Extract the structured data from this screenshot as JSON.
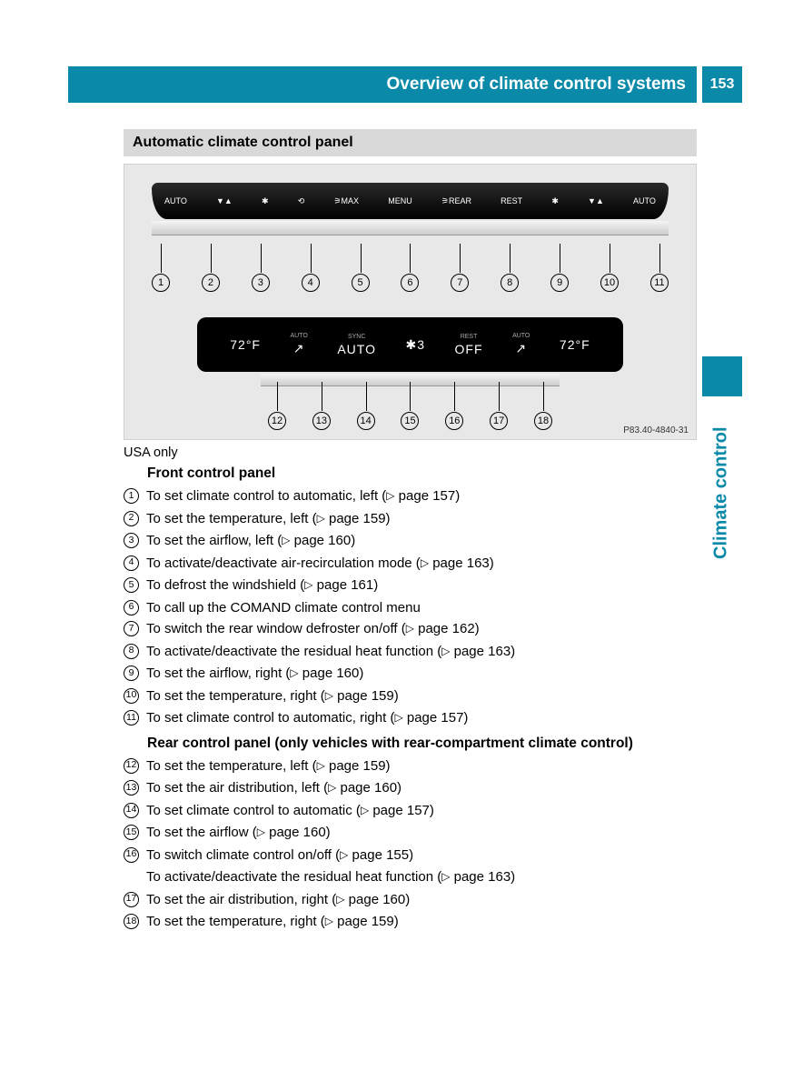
{
  "header": {
    "title": "Overview of climate control systems",
    "page": "153"
  },
  "side_tab": "Climate control",
  "section_title": "Automatic climate control panel",
  "figure": {
    "top_buttons": [
      "AUTO",
      "▼▲",
      "✱",
      "⟲",
      "⚞MAX",
      "MENU",
      "⚞REAR",
      "REST",
      "✱",
      "▼▲",
      "AUTO"
    ],
    "top_callouts": [
      "1",
      "2",
      "3",
      "4",
      "5",
      "6",
      "7",
      "8",
      "9",
      "10",
      "11"
    ],
    "rear_display": [
      {
        "small": "",
        "val": "72°F"
      },
      {
        "small": "AUTO",
        "val": "↗"
      },
      {
        "small": "SYNC",
        "val": "AUTO"
      },
      {
        "small": "",
        "val": "✱3"
      },
      {
        "small": "REST",
        "val": "OFF"
      },
      {
        "small": "AUTO",
        "val": "↗"
      },
      {
        "small": "",
        "val": "72°F"
      }
    ],
    "bottom_callouts": [
      "12",
      "13",
      "14",
      "15",
      "16",
      "17",
      "18"
    ],
    "code": "P83.40-4840-31"
  },
  "note": "USA only",
  "front_heading": "Front control panel",
  "rear_heading": "Rear control panel (only vehicles with rear-compartment climate control)",
  "items_front": [
    {
      "n": "1",
      "text": "To set climate control to automatic, left (▷ page 157)"
    },
    {
      "n": "2",
      "text": "To set the temperature, left (▷ page 159)"
    },
    {
      "n": "3",
      "text": "To set the airflow, left (▷ page 160)"
    },
    {
      "n": "4",
      "text": "To activate/deactivate air-recirculation mode (▷ page 163)"
    },
    {
      "n": "5",
      "text": "To defrost the windshield (▷ page 161)"
    },
    {
      "n": "6",
      "text": "To call up the COMAND climate control menu"
    },
    {
      "n": "7",
      "text": "To switch the rear window defroster on/off (▷ page 162)"
    },
    {
      "n": "8",
      "text": "To activate/deactivate the residual heat function (▷ page 163)"
    },
    {
      "n": "9",
      "text": "To set the airflow, right (▷ page 160)"
    },
    {
      "n": "10",
      "text": "To set the temperature, right (▷ page 159)"
    },
    {
      "n": "11",
      "text": "To set climate control to automatic, right (▷ page 157)"
    }
  ],
  "items_rear": [
    {
      "n": "12",
      "text": "To set the temperature, left (▷ page 159)"
    },
    {
      "n": "13",
      "text": "To set the air distribution, left (▷ page 160)"
    },
    {
      "n": "14",
      "text": "To set climate control to automatic (▷ page 157)"
    },
    {
      "n": "15",
      "text": "To set the airflow (▷ page 160)"
    },
    {
      "n": "16",
      "text": "To switch climate control on/off (▷ page 155)"
    },
    {
      "n": "16b",
      "text": "To activate/deactivate the residual heat function (▷ page 163)"
    },
    {
      "n": "17",
      "text": "To set the air distribution, right (▷ page 160)"
    },
    {
      "n": "18",
      "text": "To set the temperature, right (▷ page 159)"
    }
  ],
  "colors": {
    "brand": "#0a8aa8",
    "section_bg": "#d9d9d9",
    "figure_bg": "#e8e8e8"
  }
}
